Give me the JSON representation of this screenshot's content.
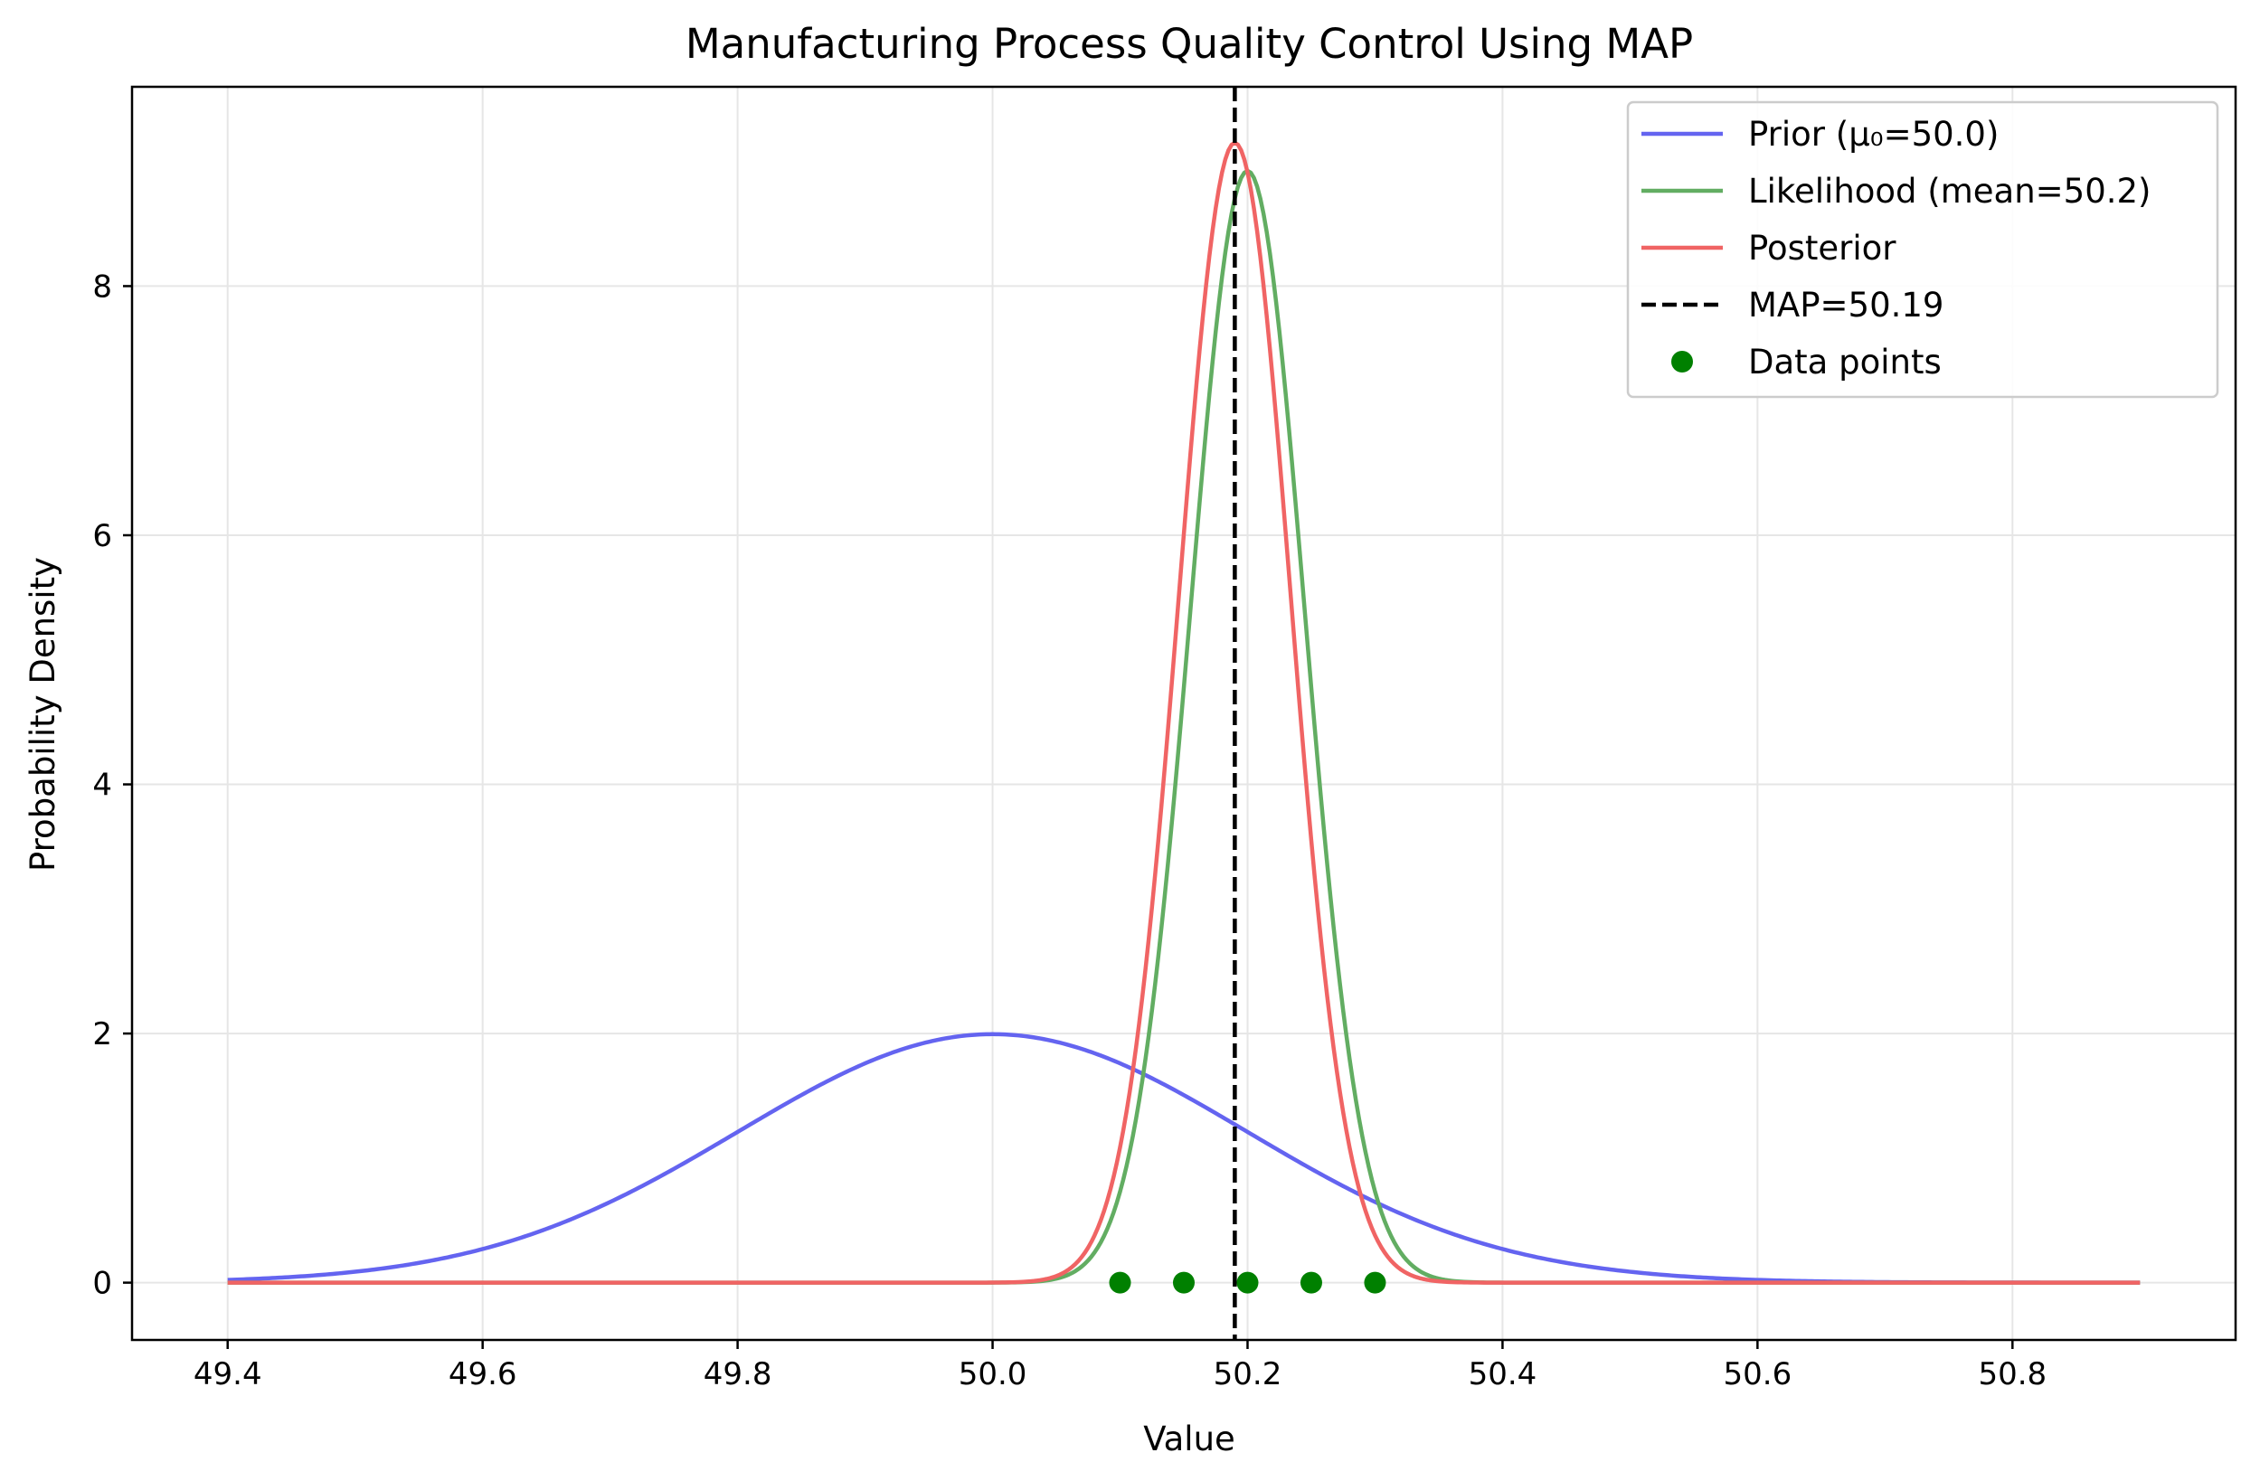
{
  "chart_data": {
    "type": "line",
    "title": "Manufacturing Process Quality Control Using MAP",
    "xlabel": "Value",
    "ylabel": "Probability Density",
    "xlim": [
      49.325,
      50.975
    ],
    "ylim": [
      -0.46,
      9.6
    ],
    "xticks": [
      49.4,
      49.6,
      49.8,
      50.0,
      50.2,
      50.4,
      50.6,
      50.8
    ],
    "xtick_labels": [
      "49.4",
      "49.6",
      "49.8",
      "50.0",
      "50.2",
      "50.4",
      "50.6",
      "50.8"
    ],
    "yticks": [
      0,
      2,
      4,
      6,
      8
    ],
    "ytick_labels": [
      "0",
      "2",
      "4",
      "6",
      "8"
    ],
    "grid": true,
    "legend_position": "top-right",
    "x_range": [
      49.4,
      50.9
    ],
    "series": [
      {
        "name": "Prior (μ₀=50.0)",
        "kind": "normal_pdf",
        "mean": 50.0,
        "std": 0.2,
        "color": "#6464f0"
      },
      {
        "name": "Likelihood (mean=50.2)",
        "kind": "normal_pdf",
        "mean": 50.2,
        "std": 0.0447,
        "color": "#62ad62"
      },
      {
        "name": "Posterior",
        "kind": "normal_pdf",
        "mean": 50.19,
        "std": 0.0436,
        "color": "#f06464"
      }
    ],
    "map_line": {
      "name": "MAP=50.19",
      "x": 50.19,
      "color": "#000000"
    },
    "data_points": {
      "name": "Data points",
      "x": [
        50.1,
        50.15,
        50.2,
        50.25,
        50.3
      ],
      "y": [
        0,
        0,
        0,
        0,
        0
      ],
      "color": "#008000"
    }
  }
}
